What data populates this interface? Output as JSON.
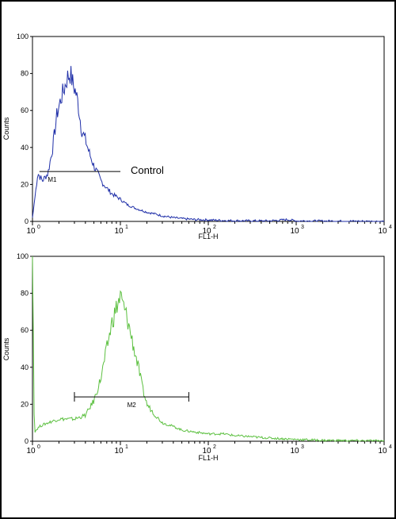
{
  "chart_data": [
    {
      "type": "line",
      "panel": "top",
      "title": "",
      "xlabel": "FL1-H",
      "ylabel": "Counts",
      "xscale": "log",
      "xlim": [
        1,
        10000
      ],
      "ylim": [
        0,
        100
      ],
      "yticks": [
        "0",
        "20",
        "40",
        "60",
        "80",
        "100"
      ],
      "xticks": [
        {
          "base": "10",
          "exp": "0"
        },
        {
          "base": "10",
          "exp": "1"
        },
        {
          "base": "10",
          "exp": "2"
        },
        {
          "base": "10",
          "exp": "3"
        },
        {
          "base": "10",
          "exp": "4"
        }
      ],
      "color": "#1f2fa8",
      "series": [
        {
          "x": [
            1.0,
            1.15,
            1.3,
            1.5,
            1.7,
            1.9,
            2.1,
            2.3,
            2.5,
            2.7,
            2.9,
            3.1,
            3.3,
            3.6,
            4.0,
            4.5,
            5.0,
            5.5,
            6.0,
            7.0,
            8.0,
            10,
            12,
            15,
            20,
            25,
            30,
            40,
            50,
            70,
            100,
            150,
            200,
            300,
            500,
            800,
            1000,
            2000,
            5000,
            10000
          ],
          "y": [
            2,
            26,
            22,
            26,
            40,
            58,
            66,
            72,
            78,
            80,
            74,
            70,
            64,
            50,
            44,
            36,
            30,
            26,
            22,
            18,
            15,
            12,
            9,
            7,
            5,
            4,
            3,
            2,
            1.5,
            1,
            0.8,
            0.5,
            0.4,
            0.3,
            0.3,
            1,
            0.3,
            0.2,
            0.1,
            0
          ]
        }
      ],
      "marker": {
        "label": "M1",
        "x_start": 1.2,
        "x_end": 10,
        "y": 27
      },
      "annotation": "Control"
    },
    {
      "type": "line",
      "panel": "bottom",
      "title": "",
      "xlabel": "FL1-H",
      "ylabel": "Counts",
      "xscale": "log",
      "xlim": [
        1,
        10000
      ],
      "ylim": [
        0,
        100
      ],
      "yticks": [
        "0",
        "20",
        "40",
        "60",
        "80",
        "100"
      ],
      "xticks": [
        {
          "base": "10",
          "exp": "0"
        },
        {
          "base": "10",
          "exp": "1"
        },
        {
          "base": "10",
          "exp": "2"
        },
        {
          "base": "10",
          "exp": "3"
        },
        {
          "base": "10",
          "exp": "4"
        }
      ],
      "color": "#5cc040",
      "series": [
        {
          "x": [
            1.0,
            1.05,
            1.2,
            1.5,
            2.0,
            3.0,
            4.0,
            5.0,
            6.0,
            7.0,
            8.0,
            9.0,
            10,
            11,
            12,
            14,
            16,
            18,
            20,
            25,
            30,
            40,
            50,
            70,
            100,
            150,
            200,
            300,
            400,
            600,
            1000,
            2000,
            5000,
            10000
          ],
          "y": [
            100,
            5,
            8,
            10,
            12,
            12,
            14,
            22,
            34,
            50,
            64,
            72,
            78,
            72,
            66,
            52,
            40,
            28,
            20,
            14,
            10,
            8,
            6,
            5,
            4,
            4,
            3,
            2.5,
            2,
            1.5,
            1,
            0.5,
            0.3,
            0.2
          ]
        }
      ],
      "marker": {
        "label": "M2",
        "x_start": 3,
        "x_end": 60,
        "y": 24
      }
    }
  ]
}
